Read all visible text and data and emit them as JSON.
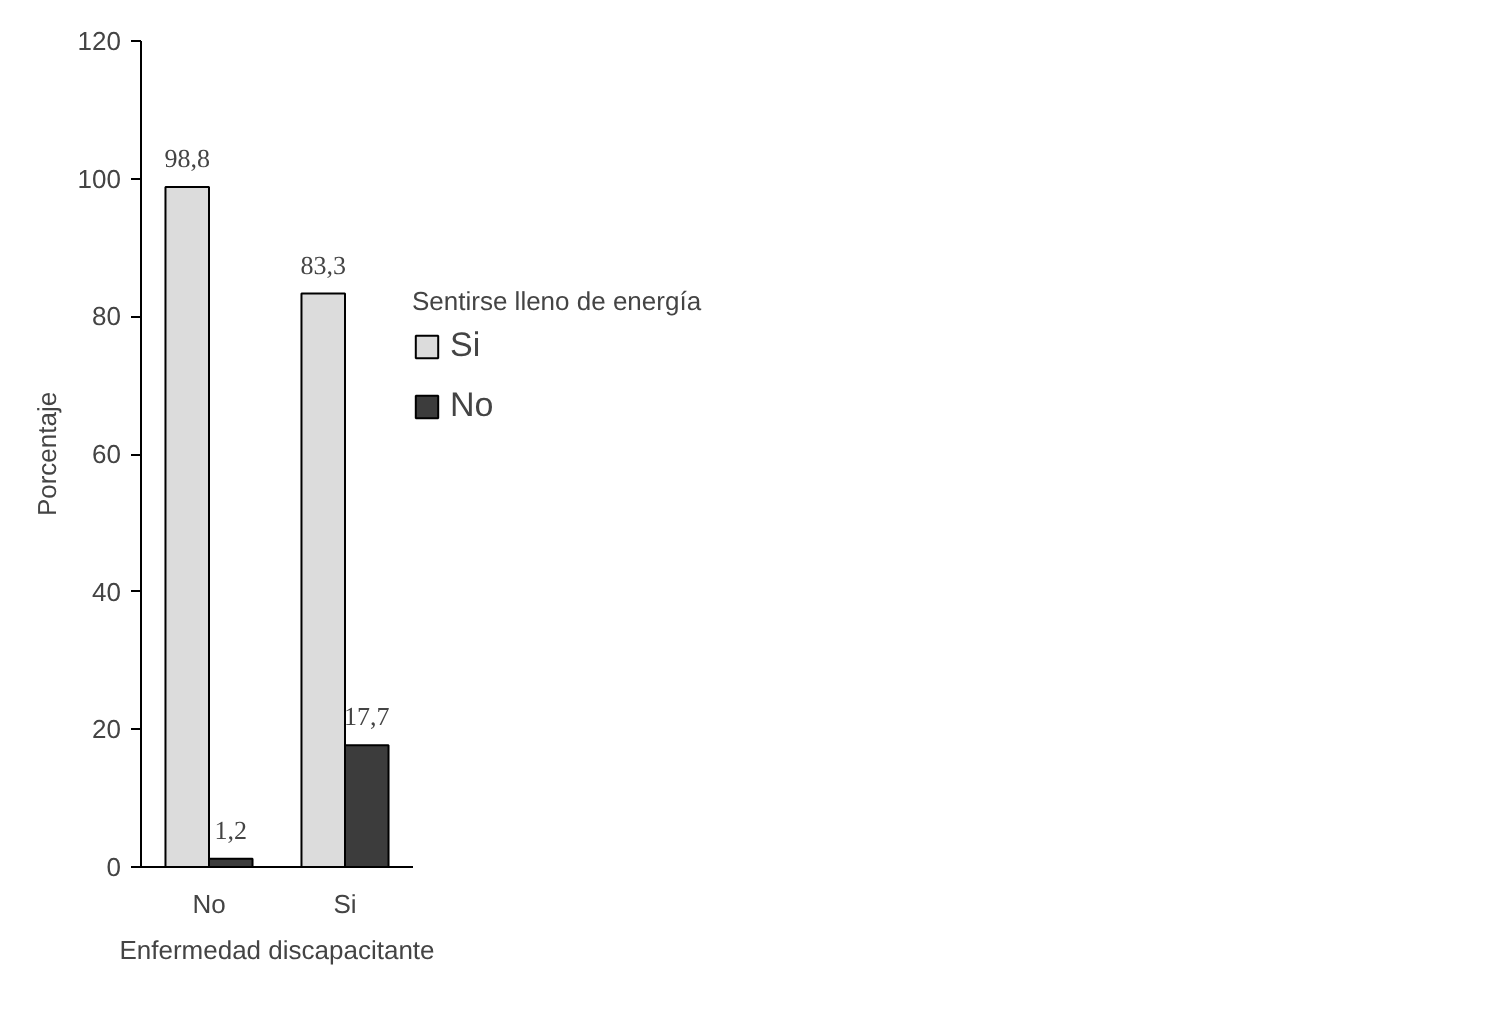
{
  "chart_data": {
    "type": "bar",
    "xlabel": "Enfermedad discapacitante",
    "ylabel": "Porcentaje",
    "legend_title": "Sentirse lleno de energía",
    "categories": [
      "No",
      "Si"
    ],
    "series": [
      {
        "name": "Si",
        "color": "#dcdcdc",
        "values": [
          98.8,
          83.3
        ],
        "value_labels": [
          "98,8",
          "83,3"
        ]
      },
      {
        "name": "No",
        "color": "#3c3c3c",
        "values": [
          1.2,
          17.7
        ],
        "value_labels": [
          "1,2",
          "17,7"
        ]
      }
    ],
    "ylim": [
      0,
      120
    ],
    "yticks": [
      0,
      20,
      40,
      60,
      80,
      100,
      120
    ],
    "grid": false,
    "legend": "right"
  }
}
